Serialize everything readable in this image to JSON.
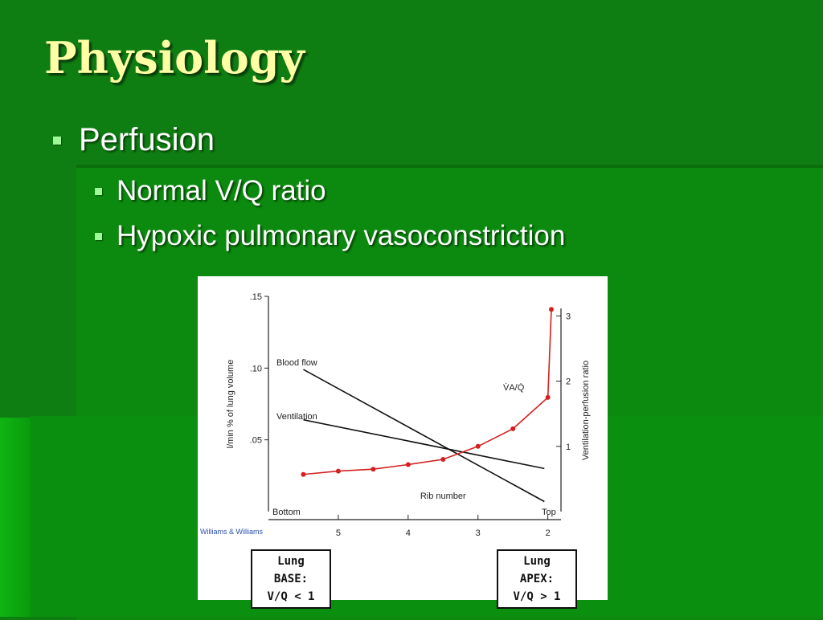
{
  "slide": {
    "title": "Physiology",
    "bullets": [
      {
        "text": "Perfusion",
        "level": 1
      },
      {
        "text": "Normal V/Q ratio",
        "level": 2
      },
      {
        "text": "Hypoxic pulmonary vasoconstriction",
        "level": 2
      }
    ],
    "colors": {
      "background": "#0f7e12",
      "title": "#ffffa6",
      "bullet": "#9dfc97",
      "text": "#ffffff"
    }
  },
  "figure": {
    "credit": "Williams & Williams",
    "base_box": {
      "line1": "Lung BASE:",
      "line2": "V/Q < 1"
    },
    "apex_box": {
      "line1": "Lung APEX:",
      "line2": "V/Q > 1"
    }
  },
  "chart_data": {
    "type": "line",
    "xlabel": "Rib number",
    "x_end_labels": {
      "left": "Bottom",
      "right": "Top"
    },
    "x_ticks": [
      "5",
      "4",
      "3",
      "2"
    ],
    "x_tick_values": [
      5,
      4,
      3,
      2
    ],
    "xlim": [
      6,
      1.95
    ],
    "ylabel": "l/min % of lung volume",
    "y_ticks": [
      ".05",
      ".10",
      ".15"
    ],
    "y_tick_values": [
      0.05,
      0.1,
      0.15
    ],
    "ylim": [
      0,
      0.15
    ],
    "y2label": "Ventilation-perfusion ratio",
    "y2_ticks": [
      "1",
      "2",
      "3"
    ],
    "y2_tick_values": [
      1,
      2,
      3
    ],
    "y2lim": [
      0,
      3.3
    ],
    "series": [
      {
        "name": "Blood flow",
        "axis": "left",
        "color": "#111111",
        "x": [
          5.5,
          2.05
        ],
        "y": [
          0.099,
          0.007
        ]
      },
      {
        "name": "Ventilation",
        "axis": "left",
        "color": "#111111",
        "x": [
          5.5,
          2.05
        ],
        "y": [
          0.064,
          0.03
        ]
      },
      {
        "name": "V̇A/Q̇",
        "axis": "right",
        "color": "#d42020",
        "marker": "dot",
        "x": [
          5.5,
          5.0,
          4.5,
          4.0,
          3.5,
          3.0,
          2.5,
          2.0,
          1.95
        ],
        "y": [
          0.57,
          0.62,
          0.65,
          0.72,
          0.8,
          1.0,
          1.27,
          1.75,
          3.1
        ]
      }
    ]
  }
}
